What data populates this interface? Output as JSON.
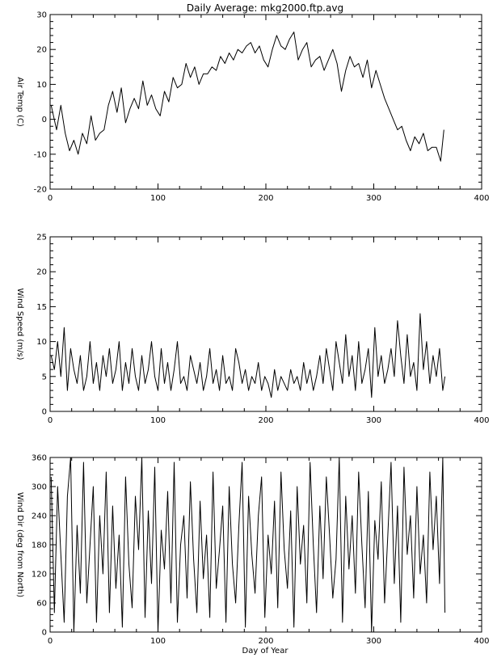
{
  "title": "Daily Average: mkg2000.ftp.avg",
  "xlabel": "Day of Year",
  "chart_data": [
    {
      "type": "line",
      "ylabel": "Air Temp (C)",
      "xlim": [
        0,
        400
      ],
      "ylim": [
        -20,
        30
      ],
      "xticks": [
        0,
        100,
        200,
        300,
        400
      ],
      "yticks": [
        -20,
        -10,
        0,
        10,
        20,
        30
      ],
      "series": [
        {
          "x": [
            1,
            6,
            10,
            14,
            18,
            22,
            26,
            30,
            34,
            38,
            42,
            46,
            50,
            54,
            58,
            62,
            66,
            70,
            74,
            78,
            82,
            86,
            90,
            94,
            98,
            102,
            106,
            110,
            114,
            118,
            122,
            126,
            130,
            134,
            138,
            142,
            146,
            150,
            154,
            158,
            162,
            166,
            170,
            174,
            178,
            182,
            186,
            190,
            194,
            198,
            202,
            206,
            210,
            214,
            218,
            222,
            226,
            230,
            234,
            238,
            242,
            246,
            250,
            254,
            258,
            262,
            266,
            270,
            274,
            278,
            282,
            286,
            290,
            294,
            298,
            302,
            306,
            310,
            314,
            318,
            322,
            326,
            330,
            334,
            338,
            342,
            346,
            350,
            354,
            358,
            362,
            365
          ],
          "values": [
            4,
            -3,
            4,
            -4,
            -9,
            -6,
            -10,
            -4,
            -7,
            1,
            -6,
            -4,
            -3,
            4,
            8,
            2,
            9,
            -1,
            3,
            6,
            3,
            11,
            4,
            7,
            3,
            1,
            8,
            5,
            12,
            9,
            10,
            16,
            12,
            15,
            10,
            13,
            13,
            15,
            14,
            18,
            16,
            19,
            17,
            20,
            19,
            21,
            22,
            19,
            21,
            17,
            15,
            20,
            24,
            21,
            20,
            23,
            25,
            17,
            20,
            22,
            15,
            17,
            18,
            14,
            17,
            20,
            16,
            8,
            14,
            18,
            15,
            16,
            12,
            17,
            9,
            14,
            10,
            6,
            3,
            0,
            -3,
            -2,
            -6,
            -9,
            -5,
            -7,
            -4,
            -9,
            -8,
            -8,
            -12,
            -3
          ]
        }
      ]
    },
    {
      "type": "line",
      "ylabel": "Wind Speed (m/s)",
      "xlim": [
        0,
        400
      ],
      "ylim": [
        0,
        25
      ],
      "xticks": [
        0,
        100,
        200,
        300,
        400
      ],
      "yticks": [
        0,
        5,
        10,
        15,
        20,
        25
      ],
      "series": [
        {
          "x": [
            1,
            4,
            7,
            10,
            13,
            16,
            19,
            22,
            25,
            28,
            31,
            34,
            37,
            40,
            43,
            46,
            49,
            52,
            55,
            58,
            61,
            64,
            67,
            70,
            73,
            76,
            79,
            82,
            85,
            88,
            91,
            94,
            97,
            100,
            103,
            106,
            109,
            112,
            115,
            118,
            121,
            124,
            127,
            130,
            133,
            136,
            139,
            142,
            145,
            148,
            151,
            154,
            157,
            160,
            163,
            166,
            169,
            172,
            175,
            178,
            181,
            184,
            187,
            190,
            193,
            196,
            199,
            202,
            205,
            208,
            211,
            214,
            217,
            220,
            223,
            226,
            229,
            232,
            235,
            238,
            241,
            244,
            247,
            250,
            253,
            256,
            259,
            262,
            265,
            268,
            271,
            274,
            277,
            280,
            283,
            286,
            289,
            292,
            295,
            298,
            301,
            304,
            307,
            310,
            313,
            316,
            319,
            322,
            325,
            328,
            331,
            334,
            337,
            340,
            343,
            346,
            349,
            352,
            355,
            358,
            361,
            364,
            366
          ],
          "values": [
            8,
            6,
            10,
            5,
            12,
            3,
            9,
            6,
            4,
            8,
            3,
            5,
            10,
            4,
            7,
            3,
            8,
            5,
            9,
            4,
            6,
            10,
            3,
            7,
            4,
            9,
            5,
            3,
            8,
            4,
            6,
            10,
            5,
            3,
            9,
            4,
            7,
            3,
            6,
            10,
            4,
            5,
            3,
            8,
            6,
            4,
            7,
            3,
            5,
            9,
            4,
            6,
            3,
            8,
            4,
            5,
            3,
            9,
            7,
            4,
            6,
            3,
            5,
            4,
            7,
            3,
            5,
            4,
            2,
            6,
            3,
            5,
            4,
            3,
            6,
            4,
            5,
            3,
            7,
            4,
            6,
            3,
            5,
            8,
            4,
            9,
            6,
            3,
            10,
            7,
            4,
            11,
            5,
            8,
            3,
            10,
            4,
            6,
            9,
            2,
            12,
            5,
            8,
            4,
            6,
            9,
            5,
            13,
            8,
            4,
            11,
            5,
            7,
            3,
            14,
            6,
            10,
            4,
            8,
            5,
            9,
            3,
            5
          ]
        }
      ]
    },
    {
      "type": "line",
      "ylabel": "Wind Dir (deg from North)",
      "xlim": [
        0,
        400
      ],
      "ylim": [
        0,
        360
      ],
      "xticks": [
        0,
        100,
        200,
        300,
        400
      ],
      "yticks": [
        0,
        60,
        120,
        180,
        240,
        300,
        360
      ],
      "series": [
        {
          "x": [
            1,
            4,
            7,
            10,
            13,
            16,
            19,
            22,
            25,
            28,
            31,
            34,
            37,
            40,
            43,
            46,
            49,
            52,
            55,
            58,
            61,
            64,
            67,
            70,
            73,
            76,
            79,
            82,
            85,
            88,
            91,
            94,
            97,
            100,
            103,
            106,
            109,
            112,
            115,
            118,
            121,
            124,
            127,
            130,
            133,
            136,
            139,
            142,
            145,
            148,
            151,
            154,
            157,
            160,
            163,
            166,
            169,
            172,
            175,
            178,
            181,
            184,
            187,
            190,
            193,
            196,
            199,
            202,
            205,
            208,
            211,
            214,
            217,
            220,
            223,
            226,
            229,
            232,
            235,
            238,
            241,
            244,
            247,
            250,
            253,
            256,
            259,
            262,
            265,
            268,
            271,
            274,
            277,
            280,
            283,
            286,
            289,
            292,
            295,
            298,
            301,
            304,
            307,
            310,
            313,
            316,
            319,
            322,
            325,
            328,
            331,
            334,
            337,
            340,
            343,
            346,
            349,
            352,
            355,
            358,
            361,
            364,
            366
          ],
          "values": [
            320,
            40,
            300,
            160,
            20,
            280,
            360,
            0,
            220,
            80,
            350,
            60,
            180,
            300,
            20,
            240,
            120,
            330,
            40,
            260,
            90,
            200,
            10,
            320,
            140,
            50,
            280,
            170,
            360,
            30,
            250,
            100,
            340,
            0,
            210,
            130,
            290,
            60,
            350,
            20,
            180,
            240,
            70,
            310,
            150,
            40,
            270,
            110,
            200,
            30,
            330,
            90,
            170,
            260,
            20,
            300,
            140,
            60,
            220,
            350,
            10,
            280,
            160,
            80,
            240,
            320,
            30,
            200,
            120,
            270,
            50,
            330,
            170,
            90,
            250,
            10,
            300,
            140,
            220,
            60,
            350,
            180,
            40,
            260,
            110,
            320,
            200,
            70,
            150,
            360,
            20,
            280,
            130,
            240,
            80,
            330,
            180,
            50,
            290,
            0,
            230,
            150,
            310,
            60,
            200,
            350,
            100,
            260,
            20,
            340,
            160,
            240,
            70,
            300,
            120,
            200,
            60,
            330,
            170,
            280,
            100,
            360,
            40
          ]
        }
      ]
    }
  ]
}
